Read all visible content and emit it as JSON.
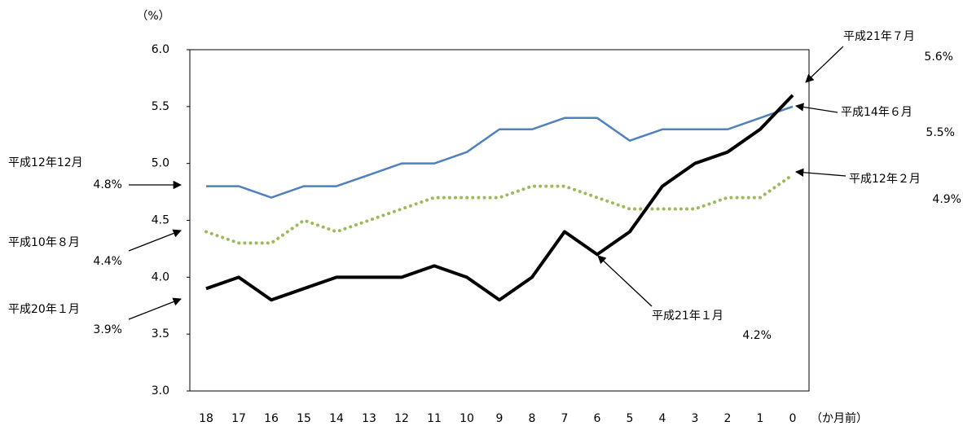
{
  "chart_data": {
    "type": "line",
    "y_label": "（%）",
    "x_label": "（か月前）",
    "categories": [
      "18",
      "17",
      "16",
      "15",
      "14",
      "13",
      "12",
      "11",
      "10",
      "9",
      "8",
      "7",
      "6",
      "5",
      "4",
      "3",
      "2",
      "1",
      "0"
    ],
    "ylim": [
      3.0,
      6.0
    ],
    "yticks": [
      {
        "value": 3.0,
        "label": "3.0"
      },
      3.5,
      {
        "value": 4.0,
        "label": "4.0"
      },
      4.5,
      {
        "value": 5.0,
        "label": "5.0"
      },
      5.5,
      {
        "value": 6.0,
        "label": "6.0"
      }
    ],
    "grid": false,
    "series": [
      {
        "color": "#4f81bd",
        "style": "solid",
        "values": [
          4.8,
          4.8,
          4.7,
          4.8,
          4.8,
          4.9,
          5.0,
          5.0,
          5.1,
          5.3,
          5.3,
          5.4,
          5.4,
          5.2,
          5.3,
          5.3,
          5.3,
          5.4,
          5.5
        ],
        "point_notes": [
          "平成12年12月",
          null,
          null,
          null,
          null,
          null,
          null,
          null,
          null,
          null,
          null,
          null,
          null,
          null,
          null,
          null,
          null,
          null,
          "平成14年６月"
        ],
        "value_labels": [
          "4.8%",
          null,
          null,
          null,
          null,
          null,
          null,
          null,
          null,
          null,
          null,
          null,
          null,
          null,
          null,
          null,
          null,
          null,
          "5.5%"
        ]
      },
      {
        "color": "#9bbb59",
        "style": "dotted",
        "values": [
          4.4,
          4.3,
          4.3,
          4.5,
          4.4,
          4.5,
          4.6,
          4.7,
          4.7,
          4.7,
          4.8,
          4.8,
          4.7,
          4.6,
          4.6,
          4.6,
          4.7,
          4.7,
          4.9
        ],
        "point_notes": [
          "平成10年８月",
          null,
          null,
          null,
          null,
          null,
          null,
          null,
          null,
          null,
          null,
          null,
          null,
          null,
          null,
          null,
          null,
          null,
          "平成12年２月"
        ],
        "value_labels": [
          "4.4%",
          null,
          null,
          null,
          null,
          null,
          null,
          null,
          null,
          null,
          null,
          null,
          null,
          null,
          null,
          null,
          null,
          null,
          "4.9%"
        ]
      },
      {
        "color": "#000000",
        "style": "solid",
        "values": [
          3.9,
          4.0,
          3.8,
          3.9,
          4.0,
          4.0,
          4.0,
          4.1,
          4.0,
          3.8,
          4.0,
          4.4,
          4.2,
          4.4,
          4.8,
          5.0,
          5.1,
          5.3,
          5.6
        ],
        "point_notes": [
          "平成20年１月",
          null,
          null,
          null,
          null,
          null,
          null,
          null,
          null,
          null,
          null,
          null,
          "平成21年１月",
          null,
          null,
          null,
          null,
          null,
          "平成21年７月"
        ],
        "value_labels": [
          "3.9%",
          null,
          null,
          null,
          null,
          null,
          null,
          null,
          null,
          null,
          null,
          null,
          "4.2%",
          null,
          null,
          null,
          null,
          null,
          "5.6%"
        ]
      }
    ]
  }
}
